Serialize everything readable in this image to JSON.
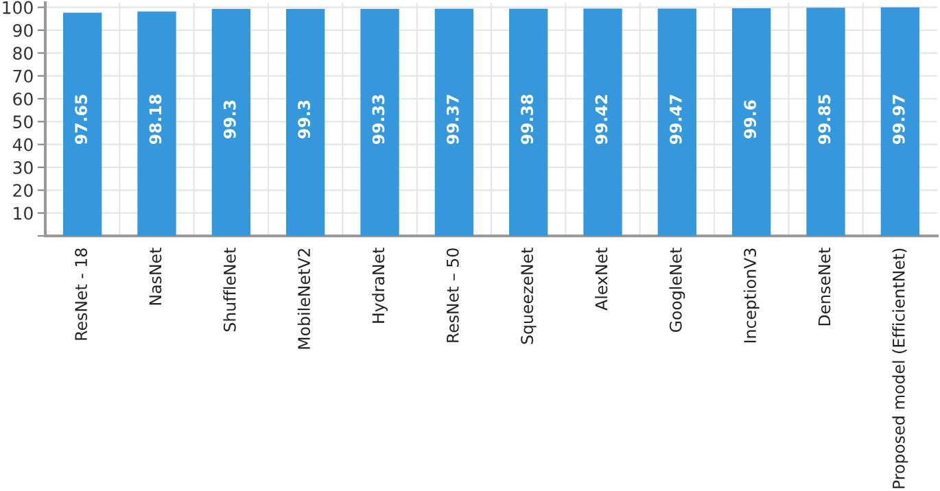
{
  "chart_data": {
    "type": "bar",
    "categories": [
      "ResNet - 18",
      "NasNet",
      "ShuffleNet",
      "MobileNetV2",
      "HydraNet",
      "ResNet – 50",
      "SqueezeNet",
      "AlexNet",
      "GoogleNet",
      "InceptionV3",
      "DenseNet",
      "Proposed model (EfficientNet)"
    ],
    "values": [
      97.65,
      98.18,
      99.3,
      99.3,
      99.33,
      99.37,
      99.38,
      99.42,
      99.47,
      99.6,
      99.85,
      99.97
    ],
    "color": "#3598dc",
    "ylim": [
      0,
      102
    ],
    "yticks": [
      {
        "value": 0,
        "label": null
      },
      10,
      20,
      30,
      40,
      50,
      60,
      70,
      80,
      90,
      100
    ],
    "grid": true,
    "data_labels": true
  }
}
